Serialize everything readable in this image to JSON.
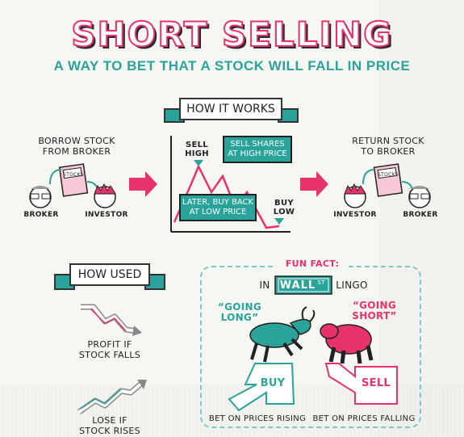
{
  "title": "SHORT SELLING",
  "subtitle": "A WAY TO BET THAT A STOCK WILL FALL IN PRICE",
  "how_it_works": {
    "ribbon": "HOW IT WORKS",
    "step1_label": "BORROW STOCK\nFROM BROKER",
    "step1_card": "STOCKS",
    "step1_from": "BROKER",
    "step1_to": "INVESTOR",
    "sell_high": "SELL\nHIGH",
    "sell_shares": "SELL SHARES\nAT HIGH PRICE",
    "buy_back": "LATER, BUY BACK\nAT LOW PRICE",
    "buy_low": "BUY\nLOW",
    "step3_label": "RETURN STOCK\nTO BROKER",
    "step3_card": "STOCKS",
    "step3_from": "INVESTOR",
    "step3_to": "BROKER"
  },
  "how_used": {
    "ribbon": "HOW USED",
    "profit": "PROFIT IF\nSTOCK FALLS",
    "lose": "LOSE IF\nSTOCK RISES"
  },
  "fun_fact": {
    "heading": "FUN FACT:",
    "in": "IN",
    "wall": "WALL",
    "st": "ST",
    "lingo": "LINGO",
    "going_long": "“GOING\nLONG”",
    "going_short": "“GOING\nSHORT”",
    "buy": "BUY",
    "sell": "SELL",
    "bet_rising": "BET ON PRICES RISING",
    "bet_falling": "BET ON PRICES FALLING"
  },
  "colors": {
    "pink": "#e8326b",
    "teal": "#2aa39a",
    "ink": "#222222"
  }
}
